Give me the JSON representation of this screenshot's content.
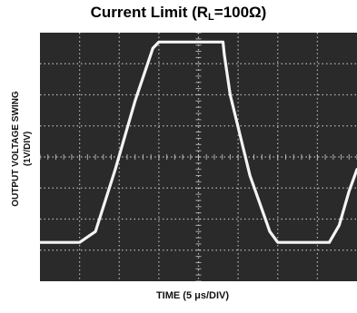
{
  "chart_data": {
    "type": "line",
    "title_main": "Current Limit (R",
    "title_sub": "L",
    "title_tail": "=100Ω)",
    "ylabel_line1": "OUTPUT VOLTAGE SWING",
    "ylabel_line2": "(1V/DIV)",
    "xlabel": "TIME (5 μs/DIV)",
    "x_divisions": 8,
    "y_divisions": 8,
    "grid": true,
    "background": "#2a2a2a",
    "grid_color": "#cfcfcf",
    "trace_color": "#f4f4f4",
    "series": [
      {
        "x": [
          0.0,
          0.7,
          1.0,
          1.4,
          1.9,
          2.4,
          2.85,
          3.0,
          3.05,
          4.6,
          4.62,
          4.65,
          4.8,
          5.3,
          5.8,
          6.0,
          6.1,
          7.3,
          7.55,
          7.8,
          8.0
        ],
        "y": [
          1.25,
          1.25,
          1.25,
          1.6,
          3.6,
          5.8,
          7.5,
          7.7,
          7.7,
          7.7,
          7.7,
          7.3,
          6.0,
          3.4,
          1.6,
          1.25,
          1.25,
          1.25,
          1.8,
          2.9,
          3.6
        ]
      }
    ]
  }
}
